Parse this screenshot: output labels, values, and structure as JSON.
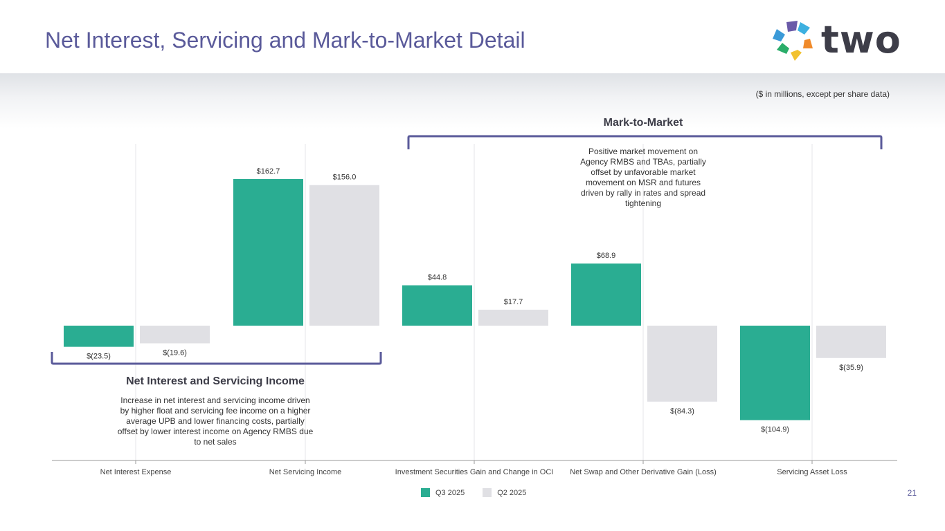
{
  "page": {
    "title": "Net Interest, Servicing and Mark-to-Market Detail",
    "units_note": "($ in millions, except per share data)",
    "page_number": "21",
    "logo_text": "two"
  },
  "groups": {
    "mark_to_market": {
      "title": "Mark-to-Market",
      "note": "Positive market movement on Agency RMBS and TBAs, partially offset by unfavorable market movement on MSR and futures driven by rally in rates and spread tightening"
    },
    "net_interest_servicing": {
      "title": "Net Interest and Servicing Income",
      "note": "Increase in net interest and servicing income driven by higher float and servicing fee income on a higher average UPB and lower financing costs, partially offset by lower interest income on Agency RMBS due to net sales"
    }
  },
  "colors": {
    "q3": "#2aad92",
    "q2": "#e0e0e4",
    "accent": "#5a5a9a",
    "bracket": "#5a5a9a"
  },
  "chart_data": {
    "type": "bar",
    "title": "",
    "xlabel": "",
    "ylabel": "",
    "ylim": [
      -130,
      200
    ],
    "categories": [
      "Net Interest Expense",
      "Net Servicing Income",
      "Investment Securities Gain and Change in OCI",
      "Net Swap and Other Derivative Gain (Loss)",
      "Servicing Asset Loss"
    ],
    "series": [
      {
        "name": "Q3 2025",
        "values": [
          -23.5,
          162.7,
          44.8,
          68.9,
          -104.9
        ],
        "labels": [
          "$(23.5)",
          "$162.7",
          "$44.8",
          "$68.9",
          "$(104.9)"
        ]
      },
      {
        "name": "Q2 2025",
        "values": [
          -19.6,
          156.0,
          17.7,
          -84.3,
          -35.9
        ],
        "labels": [
          "$(19.6)",
          "$156.0",
          "$17.7",
          "$(84.3)",
          "$(35.9)"
        ]
      }
    ],
    "legend": "bottom-center"
  }
}
